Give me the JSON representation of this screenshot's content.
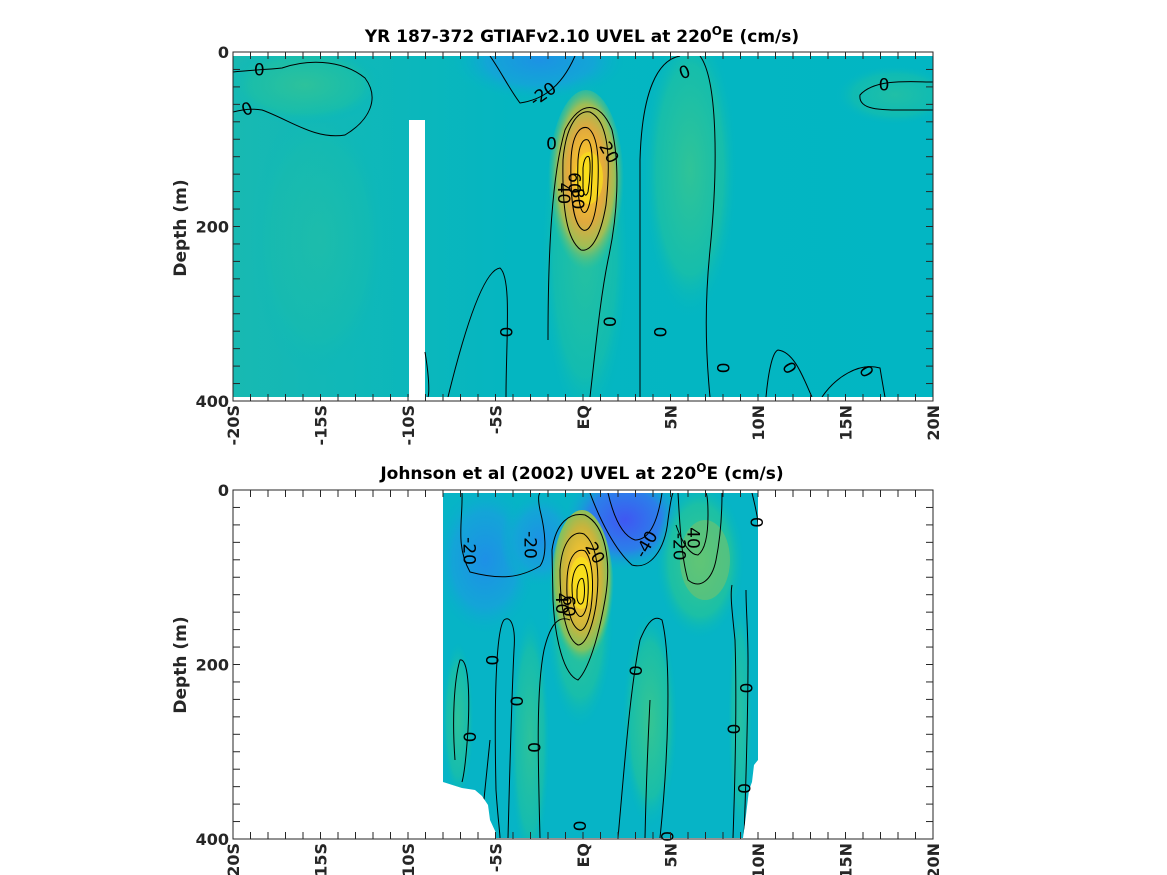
{
  "colors": {
    "background_field": "#00b7c4",
    "contour_line": "#000000",
    "colormap": [
      "#3d5cf0",
      "#1e96e6",
      "#00b7c4",
      "#4fc67a",
      "#c4c23a",
      "#f0b23a",
      "#f9e219"
    ]
  },
  "chart_data": [
    {
      "type": "heatmap",
      "title_parts": [
        "YR 187-372 GTIAFv2.10 UVEL at 220",
        "O",
        "E (cm/s)"
      ],
      "ylabel": "Depth (m)",
      "x_ticks": [
        "-20S",
        "-15S",
        "-10S",
        "-5S",
        "EQ",
        "5N",
        "10N",
        "15N",
        "20N"
      ],
      "y_ticks": [
        "0",
        "200",
        "400"
      ],
      "xlim": [
        -20,
        20
      ],
      "ylim": [
        0,
        400
      ],
      "y_reversed": true,
      "contour_interval": 20,
      "core": {
        "lat": 0,
        "depth": 145,
        "max_value": 80
      },
      "contour_labels": [
        {
          "text": "0",
          "lat": -18.5,
          "depth": 20,
          "rotate": 0
        },
        {
          "text": "0",
          "lat": -19.2,
          "depth": 65,
          "rotate": -20
        },
        {
          "text": "-20",
          "lat": -2.3,
          "depth": 48,
          "rotate": -35
        },
        {
          "text": "0",
          "lat": -1.8,
          "depth": 105,
          "rotate": 0
        },
        {
          "text": "20",
          "lat": 1.5,
          "depth": 115,
          "rotate": 60
        },
        {
          "text": "40",
          "lat": -1.1,
          "depth": 162,
          "rotate": 90
        },
        {
          "text": "60",
          "lat": -0.5,
          "depth": 150,
          "rotate": 90
        },
        {
          "text": "80",
          "lat": -0.3,
          "depth": 168,
          "rotate": 90
        },
        {
          "text": "0",
          "lat": 5.8,
          "depth": 23,
          "rotate": -20
        },
        {
          "text": "0",
          "lat": 17.2,
          "depth": 37,
          "rotate": 0
        },
        {
          "text": "0",
          "lat": -4.4,
          "depth": 321,
          "rotate": 90
        },
        {
          "text": "0",
          "lat": 1.5,
          "depth": 309,
          "rotate": 90
        },
        {
          "text": "0",
          "lat": 4.4,
          "depth": 321,
          "rotate": 90
        },
        {
          "text": "0",
          "lat": 8.0,
          "depth": 362,
          "rotate": 90
        },
        {
          "text": "0",
          "lat": 11.8,
          "depth": 362,
          "rotate": 60
        },
        {
          "text": "0",
          "lat": 16.2,
          "depth": 366,
          "rotate": 60
        }
      ]
    },
    {
      "type": "heatmap",
      "title_parts": [
        "Johnson et al (2002) UVEL at 220",
        "O",
        "E (cm/s)"
      ],
      "ylabel": "Depth (m)",
      "x_ticks": [
        "-20S",
        "-15S",
        "-10S",
        "-5S",
        "EQ",
        "5N",
        "10N",
        "15N",
        "20N"
      ],
      "y_ticks": [
        "0",
        "200",
        "400"
      ],
      "xlim": [
        -20,
        20
      ],
      "ylim": [
        0,
        400
      ],
      "y_reversed": true,
      "data_lat_range": [
        -8,
        10
      ],
      "contour_interval": 20,
      "core": {
        "lat": -0.3,
        "depth": 110,
        "max_value": 80
      },
      "contour_labels": [
        {
          "text": "-20",
          "lat": -6.5,
          "depth": 70,
          "rotate": 90
        },
        {
          "text": "-20",
          "lat": -3.0,
          "depth": 63,
          "rotate": 90
        },
        {
          "text": "20",
          "lat": 0.7,
          "depth": 72,
          "rotate": 60
        },
        {
          "text": "-40",
          "lat": 3.6,
          "depth": 62,
          "rotate": -60
        },
        {
          "text": "-20",
          "lat": 5.5,
          "depth": 65,
          "rotate": 90
        },
        {
          "text": "40",
          "lat": 6.3,
          "depth": 55,
          "rotate": 90
        },
        {
          "text": "0",
          "lat": 9.9,
          "depth": 37,
          "rotate": 90
        },
        {
          "text": "40",
          "lat": -1.2,
          "depth": 130,
          "rotate": 90
        },
        {
          "text": "60",
          "lat": -0.8,
          "depth": 133,
          "rotate": 90
        },
        {
          "text": "0",
          "lat": -5.2,
          "depth": 195,
          "rotate": 90
        },
        {
          "text": "0",
          "lat": -3.8,
          "depth": 242,
          "rotate": 90
        },
        {
          "text": "0",
          "lat": 3.0,
          "depth": 207,
          "rotate": 90
        },
        {
          "text": "0",
          "lat": -6.5,
          "depth": 283,
          "rotate": 90
        },
        {
          "text": "0",
          "lat": -2.8,
          "depth": 295,
          "rotate": 90
        },
        {
          "text": "0",
          "lat": 9.3,
          "depth": 227,
          "rotate": 90
        },
        {
          "text": "0",
          "lat": 8.6,
          "depth": 274,
          "rotate": 90
        },
        {
          "text": "0",
          "lat": 9.2,
          "depth": 342,
          "rotate": 90
        },
        {
          "text": "0",
          "lat": -0.2,
          "depth": 385,
          "rotate": 90
        },
        {
          "text": "0",
          "lat": 4.8,
          "depth": 397,
          "rotate": 90
        }
      ]
    }
  ]
}
